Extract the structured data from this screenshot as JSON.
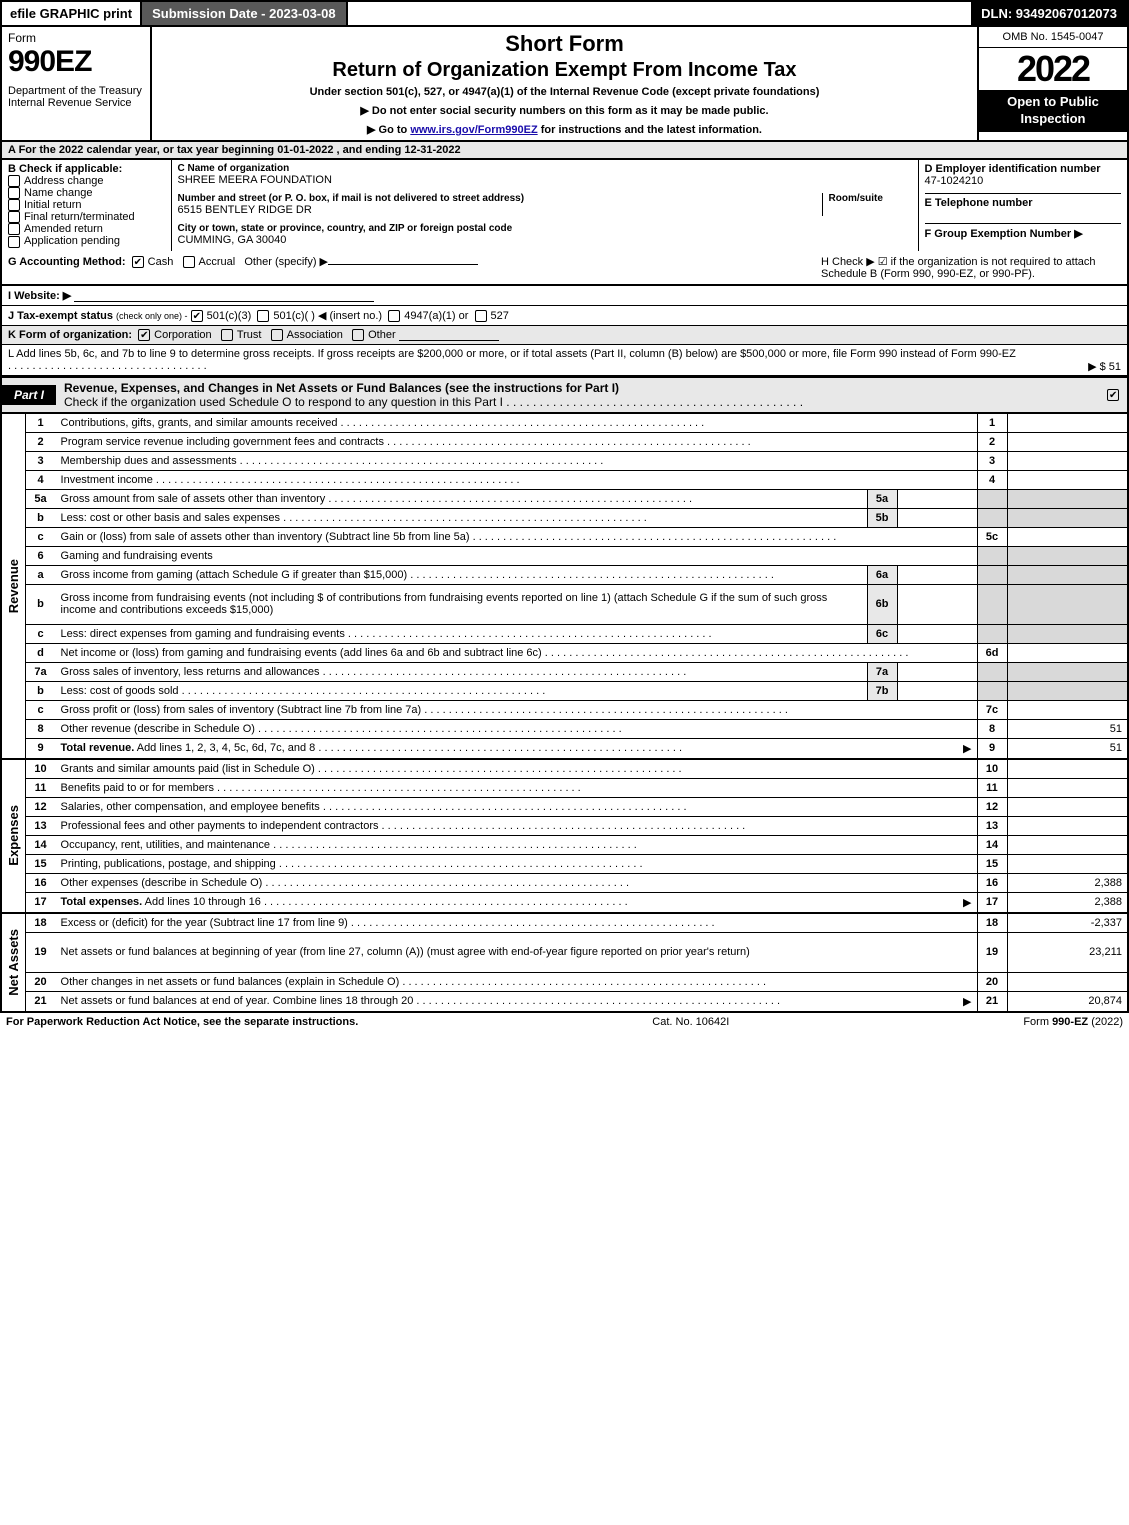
{
  "topbar": {
    "efile": "efile GRAPHIC print",
    "subdate": "Submission Date - 2023-03-08",
    "dln": "DLN: 93492067012073"
  },
  "header": {
    "form_label": "Form",
    "form_num": "990EZ",
    "dept": "Department of the Treasury\nInternal Revenue Service",
    "title1": "Short Form",
    "title2": "Return of Organization Exempt From Income Tax",
    "sub": "Under section 501(c), 527, or 4947(a)(1) of the Internal Revenue Code (except private foundations)",
    "instr1": "▶ Do not enter social security numbers on this form as it may be made public.",
    "instr2_pre": "▶ Go to ",
    "instr2_link": "www.irs.gov/Form990EZ",
    "instr2_post": " for instructions and the latest information.",
    "omb": "OMB No. 1545-0047",
    "year": "2022",
    "open": "Open to Public Inspection"
  },
  "row_a": "A  For the 2022 calendar year, or tax year beginning 01-01-2022 , and ending 12-31-2022",
  "col_b": {
    "title": "B  Check if applicable:",
    "items": [
      "Address change",
      "Name change",
      "Initial return",
      "Final return/terminated",
      "Amended return",
      "Application pending"
    ]
  },
  "col_c": {
    "c_lbl": "C Name of organization",
    "c_val": "SHREE MEERA FOUNDATION",
    "addr_lbl": "Number and street (or P. O. box, if mail is not delivered to street address)",
    "addr_val": "6515 BENTLEY RIDGE DR",
    "room_lbl": "Room/suite",
    "city_lbl": "City or town, state or province, country, and ZIP or foreign postal code",
    "city_val": "CUMMING, GA  30040"
  },
  "col_def": {
    "d_lbl": "D Employer identification number",
    "d_val": "47-1024210",
    "e_lbl": "E Telephone number",
    "f_lbl": "F Group Exemption Number   ▶"
  },
  "g": {
    "lbl": "G Accounting Method:",
    "cash": "Cash",
    "accrual": "Accrual",
    "other": "Other (specify) ▶"
  },
  "h": {
    "text": "H  Check ▶ ☑ if the organization is not required to attach Schedule B (Form 990, 990-EZ, or 990-PF)."
  },
  "i": {
    "lbl": "I Website: ▶"
  },
  "j": {
    "lbl": "J Tax-exempt status",
    "sub": "(check only one) -",
    "opt1": "501(c)(3)",
    "opt2": "501(c)(  ) ◀ (insert no.)",
    "opt3": "4947(a)(1) or",
    "opt4": "527"
  },
  "k": {
    "lbl": "K Form of organization:",
    "opts": [
      "Corporation",
      "Trust",
      "Association",
      "Other"
    ]
  },
  "l": {
    "text": "L Add lines 5b, 6c, and 7b to line 9 to determine gross receipts. If gross receipts are $200,000 or more, or if total assets (Part II, column (B) below) are $500,000 or more, file Form 990 instead of Form 990-EZ",
    "val": "▶ $ 51"
  },
  "part1": {
    "tab": "Part I",
    "desc": "Revenue, Expenses, and Changes in Net Assets or Fund Balances (see the instructions for Part I)",
    "check_text": "Check if the organization used Schedule O to respond to any question in this Part I"
  },
  "sections": [
    {
      "vtab": "Revenue",
      "rows": [
        {
          "n": "1",
          "d": "Contributions, gifts, grants, and similar amounts received",
          "rn": "1",
          "rv": ""
        },
        {
          "n": "2",
          "d": "Program service revenue including government fees and contracts",
          "rn": "2",
          "rv": ""
        },
        {
          "n": "3",
          "d": "Membership dues and assessments",
          "rn": "3",
          "rv": ""
        },
        {
          "n": "4",
          "d": "Investment income",
          "rn": "4",
          "rv": ""
        },
        {
          "n": "5a",
          "d": "Gross amount from sale of assets other than inventory",
          "sn": "5a",
          "sv": "",
          "shade": true
        },
        {
          "n": "b",
          "d": "Less: cost or other basis and sales expenses",
          "sn": "5b",
          "sv": "",
          "shade": true
        },
        {
          "n": "c",
          "d": "Gain or (loss) from sale of assets other than inventory (Subtract line 5b from line 5a)",
          "rn": "5c",
          "rv": ""
        },
        {
          "n": "6",
          "d": "Gaming and fundraising events",
          "shade": true,
          "noval": true
        },
        {
          "n": "a",
          "d": "Gross income from gaming (attach Schedule G if greater than $15,000)",
          "sn": "6a",
          "sv": "",
          "shade": true
        },
        {
          "n": "b",
          "d": "Gross income from fundraising events (not including $                    of contributions from fundraising events reported on line 1) (attach Schedule G if the sum of such gross income and contributions exceeds $15,000)",
          "sn": "6b",
          "sv": "",
          "shade": true,
          "tall": true
        },
        {
          "n": "c",
          "d": "Less: direct expenses from gaming and fundraising events",
          "sn": "6c",
          "sv": "",
          "shade": true
        },
        {
          "n": "d",
          "d": "Net income or (loss) from gaming and fundraising events (add lines 6a and 6b and subtract line 6c)",
          "rn": "6d",
          "rv": ""
        },
        {
          "n": "7a",
          "d": "Gross sales of inventory, less returns and allowances",
          "sn": "7a",
          "sv": "",
          "shade": true
        },
        {
          "n": "b",
          "d": "Less: cost of goods sold",
          "sn": "7b",
          "sv": "",
          "shade": true
        },
        {
          "n": "c",
          "d": "Gross profit or (loss) from sales of inventory (Subtract line 7b from line 7a)",
          "rn": "7c",
          "rv": ""
        },
        {
          "n": "8",
          "d": "Other revenue (describe in Schedule O)",
          "rn": "8",
          "rv": "51"
        },
        {
          "n": "9",
          "d": "Total revenue. Add lines 1, 2, 3, 4, 5c, 6d, 7c, and 8",
          "rn": "9",
          "rv": "51",
          "bold": true,
          "arrow": true
        }
      ]
    },
    {
      "vtab": "Expenses",
      "rows": [
        {
          "n": "10",
          "d": "Grants and similar amounts paid (list in Schedule O)",
          "rn": "10",
          "rv": ""
        },
        {
          "n": "11",
          "d": "Benefits paid to or for members",
          "rn": "11",
          "rv": ""
        },
        {
          "n": "12",
          "d": "Salaries, other compensation, and employee benefits",
          "rn": "12",
          "rv": ""
        },
        {
          "n": "13",
          "d": "Professional fees and other payments to independent contractors",
          "rn": "13",
          "rv": ""
        },
        {
          "n": "14",
          "d": "Occupancy, rent, utilities, and maintenance",
          "rn": "14",
          "rv": ""
        },
        {
          "n": "15",
          "d": "Printing, publications, postage, and shipping",
          "rn": "15",
          "rv": ""
        },
        {
          "n": "16",
          "d": "Other expenses (describe in Schedule O)",
          "rn": "16",
          "rv": "2,388"
        },
        {
          "n": "17",
          "d": "Total expenses. Add lines 10 through 16",
          "rn": "17",
          "rv": "2,388",
          "bold": true,
          "arrow": true
        }
      ]
    },
    {
      "vtab": "Net Assets",
      "rows": [
        {
          "n": "18",
          "d": "Excess or (deficit) for the year (Subtract line 17 from line 9)",
          "rn": "18",
          "rv": "-2,337"
        },
        {
          "n": "19",
          "d": "Net assets or fund balances at beginning of year (from line 27, column (A)) (must agree with end-of-year figure reported on prior year's return)",
          "rn": "19",
          "rv": "23,211",
          "tall": true
        },
        {
          "n": "20",
          "d": "Other changes in net assets or fund balances (explain in Schedule O)",
          "rn": "20",
          "rv": ""
        },
        {
          "n": "21",
          "d": "Net assets or fund balances at end of year. Combine lines 18 through 20",
          "rn": "21",
          "rv": "20,874",
          "arrow": true
        }
      ]
    }
  ],
  "footer": {
    "left": "For Paperwork Reduction Act Notice, see the separate instructions.",
    "mid": "Cat. No. 10642I",
    "right_pre": "Form ",
    "right_form": "990-EZ",
    "right_post": " (2022)"
  },
  "colors": {
    "shade": "#d9d9d9",
    "hdr_grey": "#e8e8e8",
    "dark_btn": "#595959"
  }
}
